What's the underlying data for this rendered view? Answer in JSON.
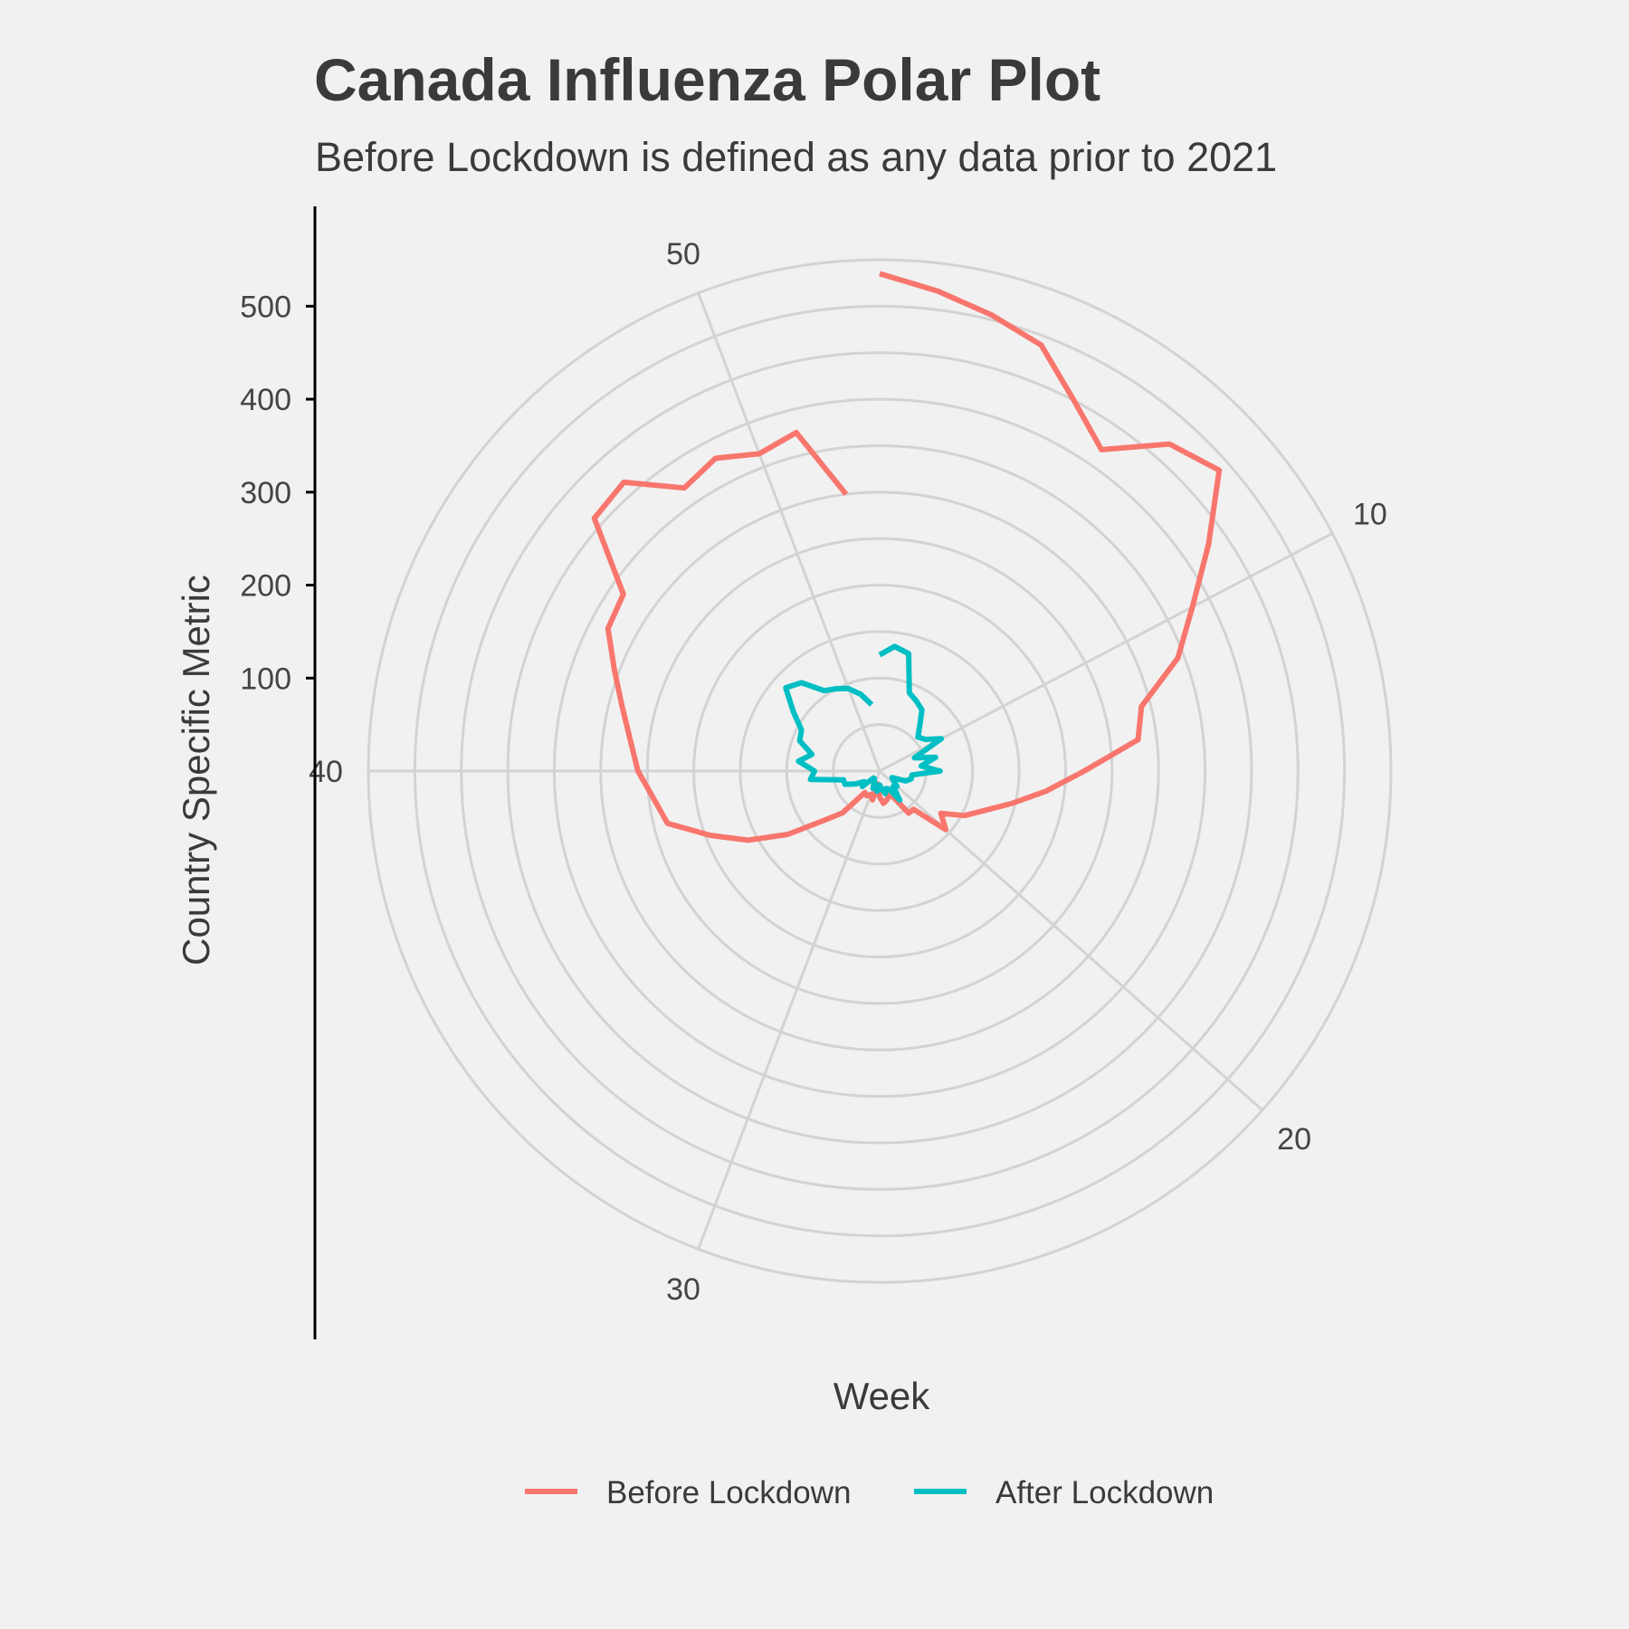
{
  "chart_data": {
    "type": "line",
    "coord": "polar",
    "title": "Canada Influenza Polar Plot",
    "subtitle": "Before Lockdown is defined as any data prior to 2021",
    "xlabel": "Week",
    "ylabel": "Country Specific Metric",
    "x_ticks": [
      10,
      20,
      30,
      40,
      50
    ],
    "y_ticks": [
      100,
      200,
      300,
      400,
      500
    ],
    "xlim": [
      1,
      53
    ],
    "ylim": [
      0,
      550
    ],
    "grid": true,
    "legend_position": "bottom",
    "x": [
      1,
      2,
      3,
      4,
      5,
      6,
      7,
      8,
      9,
      10,
      11,
      12,
      13,
      14,
      15,
      16,
      17,
      18,
      19,
      20,
      21,
      22,
      23,
      24,
      25,
      26,
      27,
      28,
      29,
      30,
      31,
      32,
      33,
      34,
      35,
      36,
      37,
      38,
      39,
      40,
      41,
      42,
      43,
      44,
      45,
      46,
      47,
      48,
      49,
      50,
      51,
      52
    ],
    "series": [
      {
        "name": "Before Lockdown",
        "color": "#F8766D",
        "values": [
          535,
          520,
          505,
          490,
          450,
          420,
          470,
          488,
          430,
          380,
          343,
          290,
          280,
          220,
          180,
          146,
          120,
          103,
          80,
          95,
          55,
          55,
          32,
          28,
          32,
          35,
          28,
          14,
          32,
          27,
          30,
          28,
          60,
          80,
          120,
          160,
          195,
          235,
          245,
          260,
          270,
          285,
          305,
          330,
          335,
          410,
          415,
          370,
          380,
          365,
          375,
          300
        ]
      },
      {
        "name": "After Lockdown",
        "color": "#00BFC4",
        "values": [
          125,
          135,
          130,
          90,
          85,
          80,
          65,
          55,
          60,
          75,
          40,
          62,
          45,
          65,
          35,
          35,
          30,
          15,
          18,
          25,
          22,
          38,
          22,
          20,
          25,
          20,
          15,
          22,
          15,
          20,
          12,
          10,
          10,
          25,
          20,
          30,
          40,
          40,
          75,
          70,
          88,
          75,
          92,
          95,
          113,
          135,
          127,
          105,
          100,
          95,
          85,
          72
        ]
      }
    ]
  }
}
